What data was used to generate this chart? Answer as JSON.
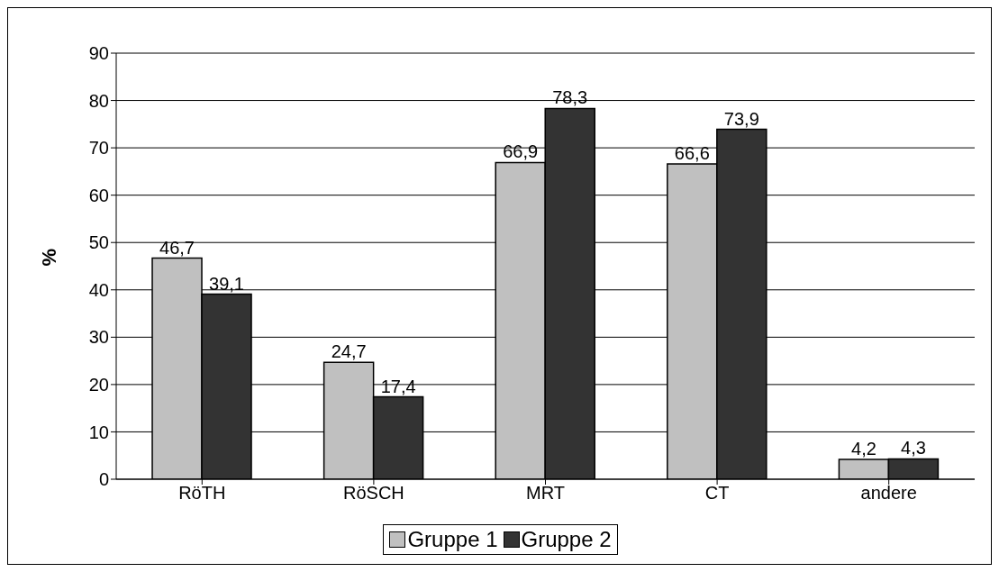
{
  "chart_data": {
    "type": "bar",
    "ylabel": "%",
    "categories": [
      "RöTH",
      "RöSCH",
      "MRT",
      "CT",
      "andere"
    ],
    "series": [
      {
        "name": "Gruppe 1",
        "color": "#c0c0c0",
        "values": [
          46.7,
          24.7,
          66.9,
          66.6,
          4.2
        ],
        "value_labels": [
          "46,7",
          "24,7",
          "66,9",
          "66,6",
          "4,2"
        ]
      },
      {
        "name": "Gruppe 2",
        "color": "#333333",
        "values": [
          39.1,
          17.4,
          78.3,
          73.9,
          4.3
        ],
        "value_labels": [
          "39,1",
          "17,4",
          "78,3",
          "73,9",
          "4,3"
        ]
      }
    ],
    "ylim": [
      0,
      90
    ],
    "yticks": [
      0,
      10,
      20,
      30,
      40,
      50,
      60,
      70,
      80,
      90
    ],
    "grid": "y",
    "legend": "bottom"
  }
}
